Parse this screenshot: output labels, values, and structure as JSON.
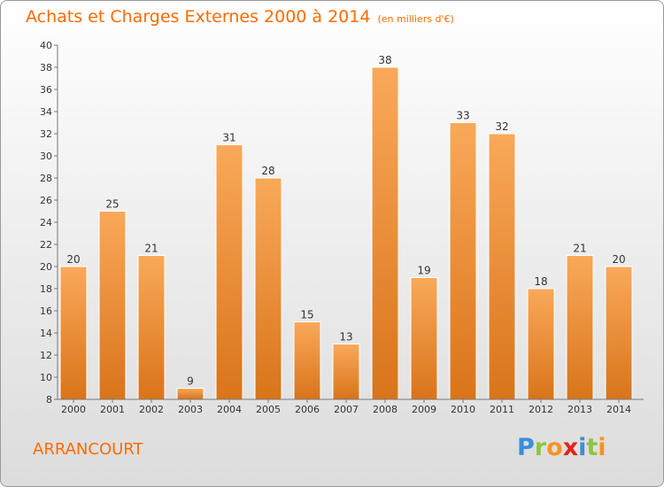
{
  "title": "Achats et Charges Externes 2000 à 2014",
  "subtitle": "(en milliers d'€)",
  "town": "ARRANCOURT",
  "logo": {
    "letters": [
      "P",
      "r",
      "o",
      "x",
      "i",
      "t",
      "i"
    ],
    "colors": [
      "#3a8fd9",
      "#8cc63f",
      "#f7941d",
      "#e2231a",
      "#3a8fd9",
      "#8cc63f",
      "#f7941d"
    ]
  },
  "colors": {
    "bar_top": "#f9a95a",
    "bar_bottom": "#d9741a",
    "accent": "#ff6a00"
  },
  "chart_data": {
    "type": "bar",
    "categories": [
      "2000",
      "2001",
      "2002",
      "2003",
      "2004",
      "2005",
      "2006",
      "2007",
      "2008",
      "2009",
      "2010",
      "2011",
      "2012",
      "2013",
      "2014"
    ],
    "values": [
      20,
      25,
      21,
      9,
      31,
      28,
      15,
      13,
      38,
      19,
      33,
      32,
      18,
      21,
      20
    ],
    "title": "Achats et Charges Externes 2000 à 2014",
    "subtitle": "(en milliers d'€)",
    "ylim": [
      8,
      40
    ],
    "yticks": [
      8,
      10,
      12,
      14,
      16,
      18,
      20,
      22,
      24,
      26,
      28,
      30,
      32,
      34,
      36,
      38,
      40
    ],
    "grid": false,
    "data_labels": true
  }
}
